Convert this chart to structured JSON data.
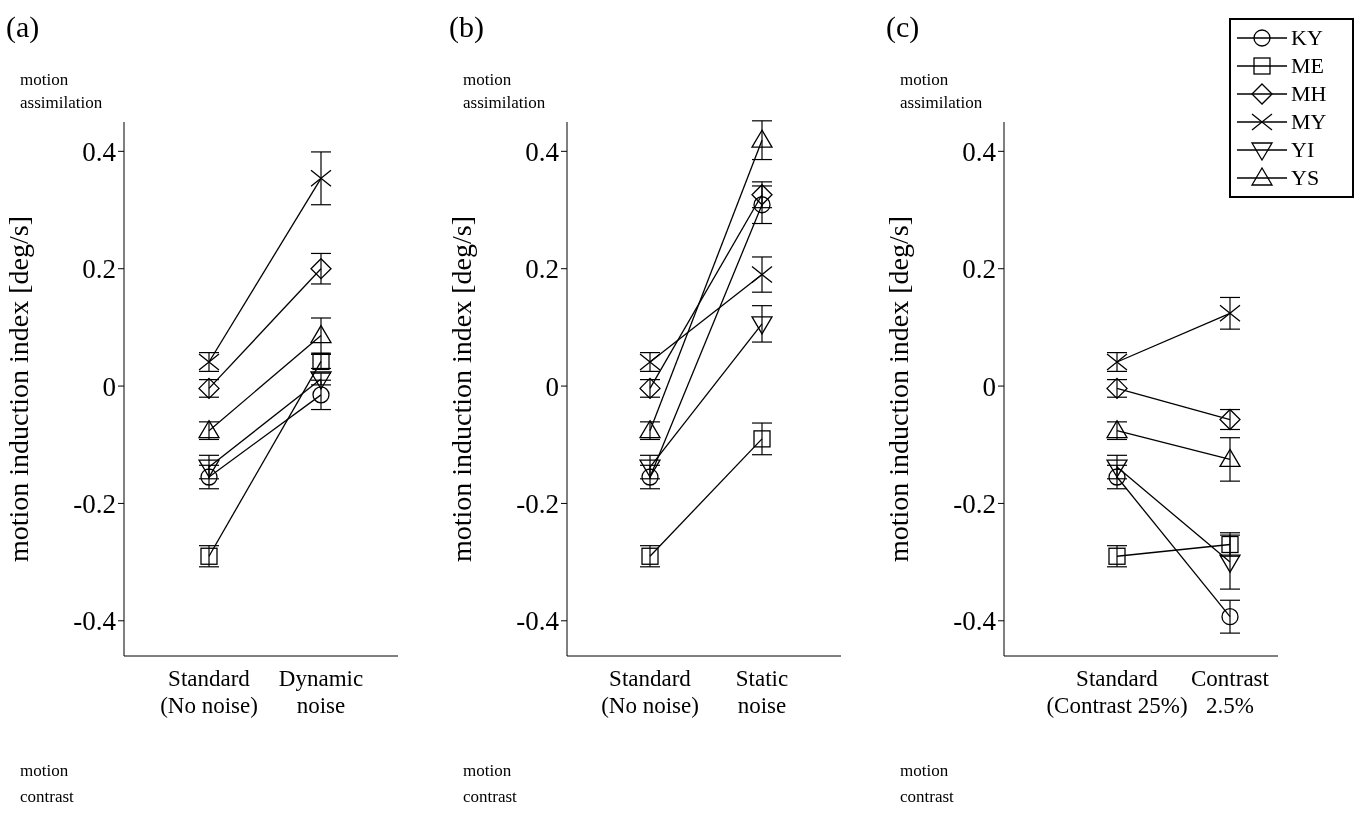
{
  "chart_data": [
    {
      "type": "line",
      "title": "(a)",
      "ylabel": "motion induction  index [deg/s]",
      "categories": [
        "Standard\n(No noise)",
        "Dynamic\nnoise"
      ],
      "ylim": [
        -0.46,
        0.45
      ],
      "yticks": [
        -0.4,
        -0.2,
        0,
        0.2,
        0.4
      ],
      "grid": false,
      "legend": false,
      "annotations": [
        "motion\nassimilation",
        "motion\ncontrast"
      ],
      "series": [
        {
          "color": "#000000",
          "marker": "circle",
          "values": [
            -0.155,
            -0.015
          ],
          "errors": [
            0.02,
            0.025
          ]
        },
        {
          "color": "#000000",
          "marker": "square",
          "values": [
            -0.29,
            0.042
          ],
          "errors": [
            0.018,
            0.012
          ]
        },
        {
          "color": "#000000",
          "marker": "diamond",
          "values": [
            -0.004,
            0.2
          ],
          "errors": [
            0.015,
            0.026
          ]
        },
        {
          "color": "#000000",
          "marker": "cross",
          "values": [
            0.041,
            0.354
          ],
          "errors": [
            0.016,
            0.045
          ]
        },
        {
          "color": "#000000",
          "marker": "triangle_down",
          "values": [
            -0.138,
            0.012
          ],
          "errors": [
            0.02,
            0.01
          ]
        },
        {
          "color": "#000000",
          "marker": "triangle",
          "values": [
            -0.076,
            0.086
          ],
          "errors": [
            0.015,
            0.03
          ]
        }
      ]
    },
    {
      "type": "line",
      "title": "(b)",
      "ylabel": "motion induction  index [deg/s]",
      "categories": [
        "Standard\n(No noise)",
        "Static\nnoise"
      ],
      "ylim": [
        -0.46,
        0.45
      ],
      "yticks": [
        -0.4,
        -0.2,
        0,
        0.2,
        0.4
      ],
      "grid": false,
      "legend": false,
      "annotations": [
        "motion\nassimilation",
        "motion\ncontrast"
      ],
      "series": [
        {
          "color": "#000000",
          "marker": "circle",
          "values": [
            -0.155,
            0.309
          ],
          "errors": [
            0.02,
            0.032
          ]
        },
        {
          "color": "#000000",
          "marker": "square",
          "values": [
            -0.29,
            -0.09
          ],
          "errors": [
            0.018,
            0.027
          ]
        },
        {
          "color": "#000000",
          "marker": "diamond",
          "values": [
            -0.004,
            0.326
          ],
          "errors": [
            0.015,
            0.022
          ]
        },
        {
          "color": "#000000",
          "marker": "cross",
          "values": [
            0.041,
            0.19
          ],
          "errors": [
            0.016,
            0.03
          ]
        },
        {
          "color": "#000000",
          "marker": "triangle_down",
          "values": [
            -0.138,
            0.106
          ],
          "errors": [
            0.02,
            0.031
          ]
        },
        {
          "color": "#000000",
          "marker": "triangle",
          "values": [
            -0.076,
            0.419
          ],
          "errors": [
            0.015,
            0.033
          ]
        }
      ]
    },
    {
      "type": "line",
      "title": "(c)",
      "ylabel": "motion induction  index [deg/s]",
      "categories": [
        "Standard\n(Contrast 25%)",
        "Contrast\n2.5%"
      ],
      "ylim": [
        -0.46,
        0.45
      ],
      "yticks": [
        -0.4,
        -0.2,
        0,
        0.2,
        0.4
      ],
      "grid": false,
      "legend": "top right",
      "annotations": [
        "motion\nassimilation",
        "motion\ncontrast"
      ],
      "series": [
        {
          "name": "KY",
          "color": "#000000",
          "marker": "circle",
          "values": [
            -0.155,
            -0.393
          ],
          "errors": [
            0.02,
            0.028
          ]
        },
        {
          "name": "ME",
          "color": "#000000",
          "marker": "square",
          "values": [
            -0.29,
            -0.27
          ],
          "errors": [
            0.018,
            0.02
          ]
        },
        {
          "name": "MH",
          "color": "#000000",
          "marker": "diamond",
          "values": [
            -0.004,
            -0.057
          ],
          "errors": [
            0.015,
            0.017
          ]
        },
        {
          "name": "MY",
          "color": "#000000",
          "marker": "cross",
          "values": [
            0.041,
            0.124
          ],
          "errors": [
            0.016,
            0.027
          ]
        },
        {
          "name": "YI",
          "color": "#000000",
          "marker": "triangle_down",
          "values": [
            -0.138,
            -0.3
          ],
          "errors": [
            0.02,
            0.046
          ]
        },
        {
          "name": "YS",
          "color": "#000000",
          "marker": "triangle",
          "values": [
            -0.076,
            -0.125
          ],
          "errors": [
            0.015,
            0.037
          ]
        }
      ]
    }
  ]
}
